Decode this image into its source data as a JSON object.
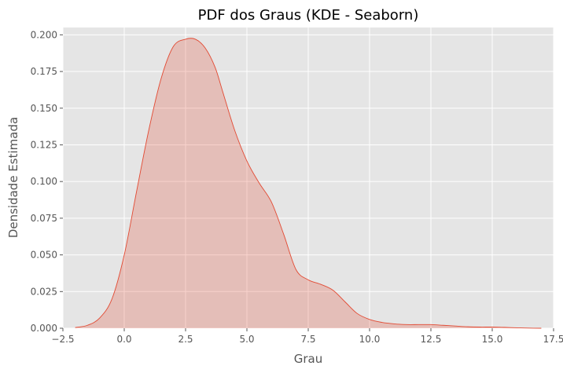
{
  "chart_data": {
    "type": "area",
    "title": "PDF dos Graus (KDE - Seaborn)",
    "xlabel": "Grau",
    "ylabel": "Densidade Estimada",
    "xlim": [
      -2.5,
      17.5
    ],
    "ylim": [
      0,
      0.205
    ],
    "grid": true,
    "x_ticks": [
      -2.5,
      0.0,
      2.5,
      5.0,
      7.5,
      10.0,
      12.5,
      15.0,
      17.5
    ],
    "x_tick_labels": [
      "−2.5",
      "0.0",
      "2.5",
      "5.0",
      "7.5",
      "10.0",
      "12.5",
      "15.0",
      "17.5"
    ],
    "y_ticks": [
      0.0,
      0.025,
      0.05,
      0.075,
      0.1,
      0.125,
      0.15,
      0.175,
      0.2
    ],
    "y_tick_labels": [
      "0.000",
      "0.025",
      "0.050",
      "0.075",
      "0.100",
      "0.125",
      "0.150",
      "0.175",
      "0.200"
    ],
    "series": [
      {
        "x": [
          -2.0,
          -1.5,
          -1.0,
          -0.5,
          0.0,
          0.5,
          1.0,
          1.5,
          2.0,
          2.5,
          2.9,
          3.3,
          3.7,
          4.0,
          4.5,
          5.0,
          5.5,
          6.0,
          6.5,
          7.0,
          7.5,
          8.0,
          8.5,
          9.0,
          9.5,
          10.0,
          10.5,
          11.0,
          11.5,
          12.0,
          12.5,
          13.0,
          13.5,
          14.0,
          14.5,
          15.0,
          15.5,
          16.0,
          16.5,
          17.0
        ],
        "y": [
          0.0005,
          0.002,
          0.007,
          0.02,
          0.05,
          0.093,
          0.135,
          0.17,
          0.192,
          0.197,
          0.197,
          0.191,
          0.178,
          0.162,
          0.135,
          0.114,
          0.099,
          0.086,
          0.064,
          0.04,
          0.033,
          0.03,
          0.026,
          0.018,
          0.01,
          0.006,
          0.004,
          0.003,
          0.0025,
          0.0025,
          0.0025,
          0.002,
          0.0015,
          0.001,
          0.0008,
          0.0008,
          0.0006,
          0.0003,
          0.0001,
          0.0
        ]
      }
    ],
    "colors": {
      "line": "#e24a33",
      "fill": "#e24a33",
      "plot_background": "#e5e5e5",
      "grid": "#ffffff"
    }
  }
}
